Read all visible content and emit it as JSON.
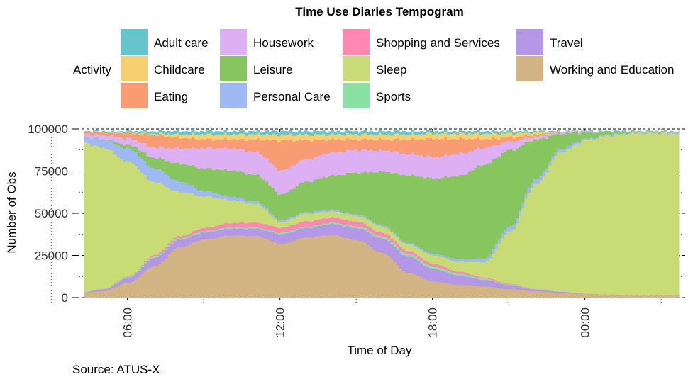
{
  "chart_data": {
    "type": "area",
    "stacked": true,
    "title": "Time Use Diaries Tempogram",
    "xlabel": "Time of Day",
    "ylabel": "Number of Obs",
    "caption": "Source: ATUS-X",
    "legend_title": "Activity",
    "legend_position": "top",
    "x_ticks": [
      "06:00",
      "12:00",
      "18:00",
      "00:00"
    ],
    "y_ticks": [
      "0",
      "25000",
      "50000",
      "75000",
      "100000"
    ],
    "ylim": [
      0,
      100000
    ],
    "x_hours_start": 4,
    "x_hours_end": 28,
    "total_obs": 98500,
    "legend": [
      {
        "label": "Adult care",
        "color": "#66C5CC"
      },
      {
        "label": "Childcare",
        "color": "#F6CF71"
      },
      {
        "label": "Eating",
        "color": "#F89C74"
      },
      {
        "label": "Housework",
        "color": "#DCB0F2"
      },
      {
        "label": "Leisure",
        "color": "#87C55F"
      },
      {
        "label": "Personal Care",
        "color": "#9EB9F3"
      },
      {
        "label": "Shopping and Services",
        "color": "#FE88B1"
      },
      {
        "label": "Sleep",
        "color": "#C9DB74"
      },
      {
        "label": "Sports",
        "color": "#8BE0A4"
      },
      {
        "label": "Travel",
        "color": "#B497E7"
      },
      {
        "label": "Working and Education",
        "color": "#D3B484"
      }
    ],
    "x": [
      4,
      5,
      6,
      7,
      8,
      9,
      10,
      11,
      12,
      13,
      14,
      15,
      16,
      17,
      18,
      19,
      20,
      21,
      22,
      23,
      24,
      25,
      26,
      27,
      28
    ],
    "series": [
      {
        "name": "Working and Education",
        "values": [
          2500,
          4000,
          9000,
          18000,
          29000,
          34000,
          36000,
          35000,
          27000,
          32000,
          35000,
          33000,
          25000,
          14000,
          9000,
          7000,
          6000,
          5000,
          4000,
          3000,
          2200,
          1800,
          1500,
          1500,
          2000
        ]
      },
      {
        "name": "Travel",
        "values": [
          200,
          1000,
          3000,
          5000,
          4500,
          4000,
          4000,
          4000,
          5000,
          5000,
          6000,
          7000,
          8000,
          9000,
          7000,
          5000,
          3500,
          2500,
          1000,
          500,
          200,
          100,
          100,
          100,
          100
        ]
      },
      {
        "name": "Sports",
        "values": [
          0,
          200,
          500,
          800,
          800,
          800,
          700,
          700,
          700,
          700,
          800,
          1000,
          1200,
          1500,
          1300,
          1000,
          700,
          400,
          200,
          100,
          0,
          0,
          0,
          0,
          0
        ]
      },
      {
        "name": "Shopping and Services",
        "values": [
          0,
          100,
          300,
          800,
          1200,
          1800,
          2500,
          2800,
          2500,
          2800,
          2800,
          2600,
          2200,
          1800,
          1500,
          1000,
          600,
          300,
          100,
          0,
          0,
          0,
          0,
          0,
          0
        ]
      },
      {
        "name": "Sleep",
        "values": [
          90300,
          83700,
          67700,
          41900,
          25500,
          18400,
          13300,
          10500,
          2800,
          4200,
          3400,
          3400,
          3400,
          3700,
          4700,
          5500,
          8200,
          30900,
          63700,
          82900,
          91100,
          94600,
          96100,
          96100,
          95600
        ]
      },
      {
        "name": "Personal Care",
        "values": [
          3000,
          5000,
          8000,
          8000,
          6000,
          3000,
          2000,
          1500,
          1000,
          800,
          800,
          800,
          800,
          800,
          1000,
          1500,
          2000,
          3000,
          3000,
          2000,
          1000,
          500,
          500,
          500,
          500
        ]
      },
      {
        "name": "Leisure",
        "values": [
          0,
          0,
          2000,
          6000,
          10000,
          13000,
          15000,
          15000,
          13000,
          16000,
          19000,
          24000,
          30000,
          38000,
          42000,
          45000,
          50000,
          45000,
          24000,
          9000,
          3500,
          1500,
          300,
          300,
          300
        ]
      },
      {
        "name": "Housework",
        "values": [
          1500,
          2500,
          4000,
          6000,
          9000,
          12000,
          13000,
          13000,
          12000,
          12000,
          13000,
          13000,
          12000,
          12000,
          12000,
          12000,
          9000,
          5000,
          2000,
          1000,
          500,
          0,
          0,
          0,
          0
        ]
      },
      {
        "name": "Eating",
        "values": [
          1000,
          1500,
          3000,
          7000,
          6000,
          5000,
          5000,
          7000,
          15000,
          10000,
          7000,
          6000,
          6000,
          8000,
          10000,
          8000,
          4500,
          2500,
          1000,
          0,
          0,
          0,
          0,
          0,
          0
        ]
      },
      {
        "name": "Childcare",
        "values": [
          0,
          200,
          500,
          1000,
          2000,
          3000,
          3000,
          3000,
          3000,
          3000,
          3000,
          3000,
          3000,
          3000,
          3000,
          3000,
          3000,
          2500,
          1500,
          0,
          0,
          0,
          0,
          0,
          0
        ]
      },
      {
        "name": "Adult care",
        "values": [
          0,
          300,
          500,
          1000,
          1500,
          1500,
          1500,
          1500,
          1500,
          1500,
          1500,
          1500,
          1500,
          1500,
          1000,
          1000,
          1000,
          900,
          500,
          0,
          0,
          0,
          0,
          0,
          0
        ]
      }
    ]
  }
}
